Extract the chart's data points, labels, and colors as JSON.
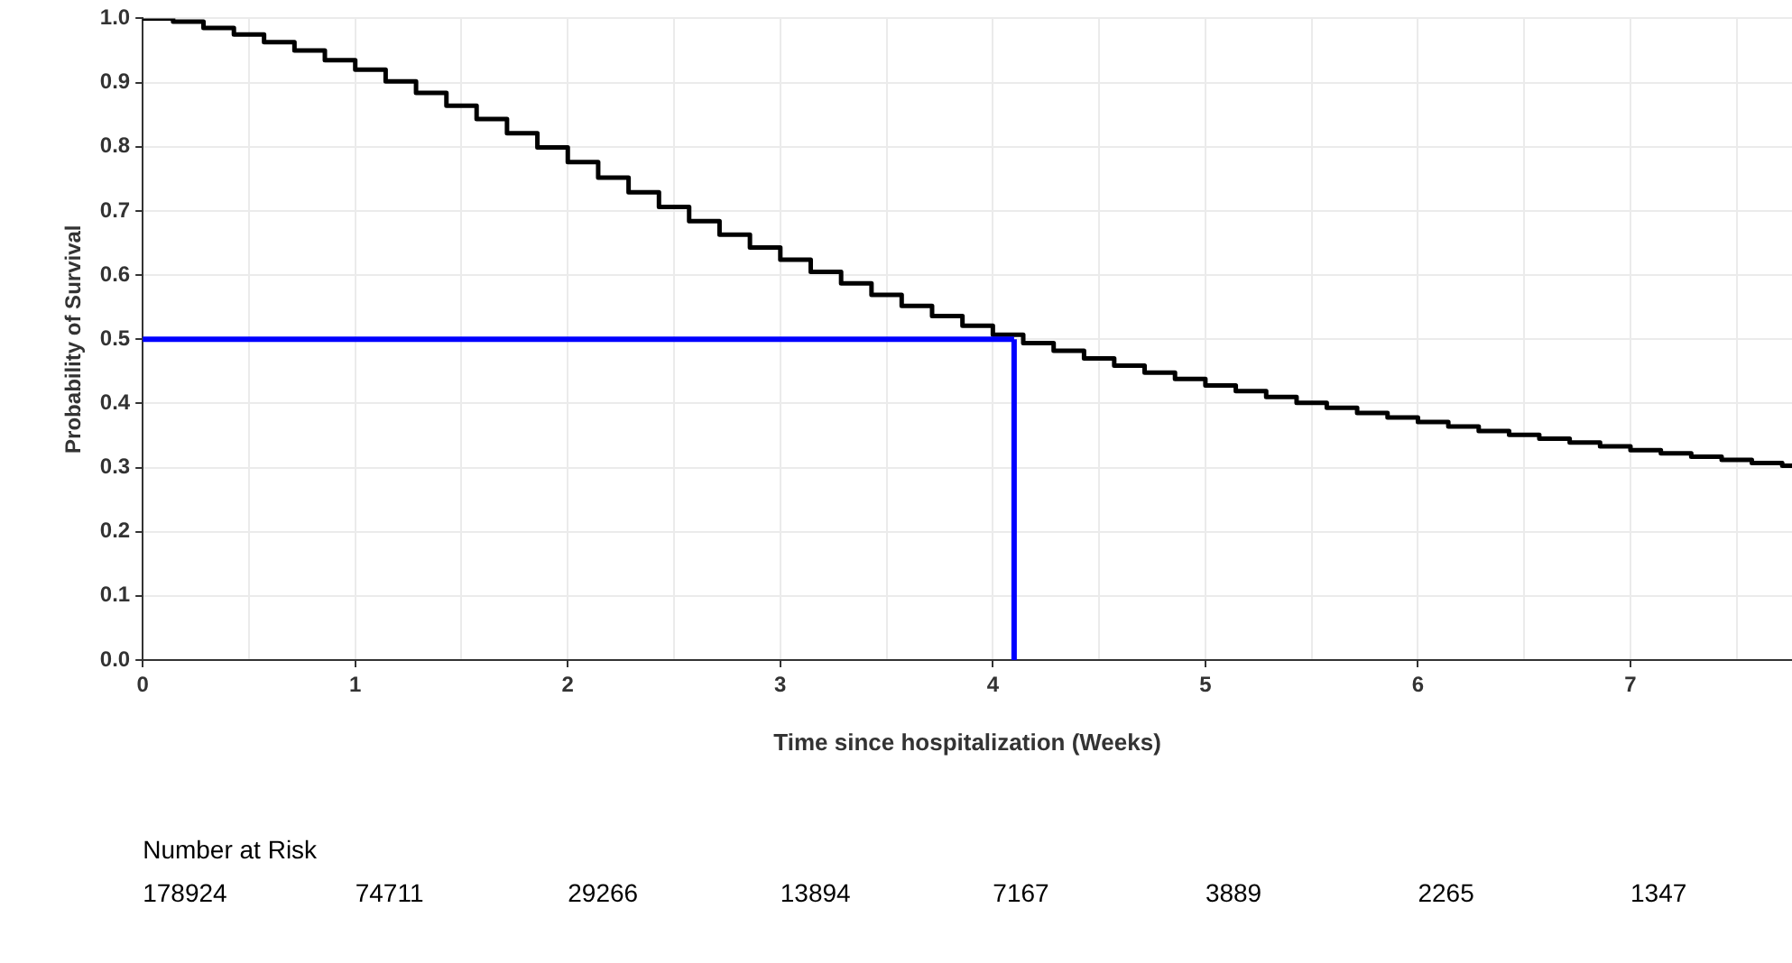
{
  "chart_data": {
    "type": "step",
    "xlabel": "Time since hospitalization (Weeks)",
    "ylabel": "Probability of Survival",
    "xlim": [
      0,
      7.76
    ],
    "ylim": [
      0,
      1
    ],
    "xticks": [
      0,
      {
        "value": 0.5,
        "label": null
      },
      1,
      {
        "value": 1.5,
        "label": null
      },
      2,
      {
        "value": 2.5,
        "label": null
      },
      3,
      {
        "value": 3.5,
        "label": null
      },
      4,
      {
        "value": 4.5,
        "label": null
      },
      5,
      {
        "value": 5.5,
        "label": null
      },
      6,
      {
        "value": 6.5,
        "label": null
      },
      7,
      {
        "value": 7.5,
        "label": null
      }
    ],
    "yticks": [
      {
        "value": 0,
        "label": "0.0"
      },
      0.1,
      0.2,
      0.3,
      0.4,
      0.5,
      0.6,
      0.7,
      0.8,
      0.9,
      {
        "value": 1,
        "label": "1.0"
      }
    ],
    "grid": true,
    "legend": false,
    "marker": "none",
    "line_style": "solid",
    "series": [
      {
        "color": "#000000",
        "x": [
          0,
          0.143,
          0.286,
          0.429,
          0.571,
          0.714,
          0.857,
          1,
          1.143,
          1.286,
          1.429,
          1.571,
          1.714,
          1.857,
          2,
          2.143,
          2.286,
          2.429,
          2.571,
          2.714,
          2.857,
          3,
          3.143,
          3.286,
          3.429,
          3.571,
          3.714,
          3.857,
          4,
          4.143,
          4.286,
          4.429,
          4.571,
          4.714,
          4.857,
          5,
          5.143,
          5.286,
          5.429,
          5.571,
          5.714,
          5.857,
          6,
          6.143,
          6.286,
          6.429,
          6.571,
          6.714,
          6.857,
          7,
          7.143,
          7.286,
          7.429,
          7.571,
          7.714,
          7.76
        ],
        "values": [
          1.0,
          0.995,
          0.985,
          0.975,
          0.963,
          0.95,
          0.935,
          0.92,
          0.902,
          0.884,
          0.864,
          0.843,
          0.821,
          0.799,
          0.776,
          0.752,
          0.729,
          0.706,
          0.684,
          0.663,
          0.643,
          0.624,
          0.605,
          0.587,
          0.569,
          0.552,
          0.536,
          0.521,
          0.507,
          0.494,
          0.482,
          0.47,
          0.459,
          0.448,
          0.438,
          0.428,
          0.419,
          0.41,
          0.401,
          0.393,
          0.385,
          0.378,
          0.371,
          0.364,
          0.357,
          0.351,
          0.345,
          0.339,
          0.333,
          0.327,
          0.322,
          0.317,
          0.312,
          0.307,
          0.303,
          0.3
        ]
      }
    ],
    "ref_lines": [
      {
        "axis": "y",
        "value": 0.5,
        "color": "#0000ff"
      },
      {
        "axis": "x",
        "value": 4.1,
        "color": "#0000ff"
      }
    ],
    "annotations": [
      "Number at Risk",
      "178924",
      "74711",
      "29266",
      "13894",
      "7167",
      "3889",
      "2265",
      "1347"
    ]
  }
}
